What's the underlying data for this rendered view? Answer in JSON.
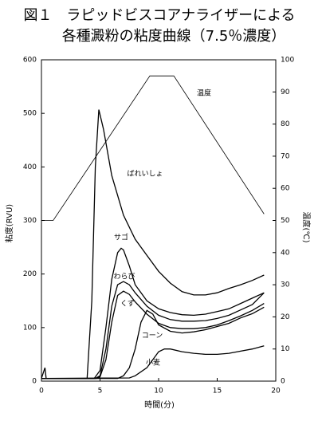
{
  "chart_data": {
    "type": "line",
    "title": [
      "図１　ラピッドビスコアナライザーによる",
      "各種澱粉の粘度曲線（7.5％濃度）"
    ],
    "x_label": "時間(分)",
    "y_label": "粘度(RVU)",
    "y2_label": "温度(℃)",
    "xlim": [
      0,
      20
    ],
    "xticks": [
      0,
      5,
      10,
      15,
      20
    ],
    "ylim": [
      0,
      600
    ],
    "yticks": [
      0,
      100,
      200,
      300,
      400,
      500,
      600
    ],
    "y2lim": [
      0,
      100
    ],
    "y2ticks": [
      0,
      10,
      20,
      30,
      40,
      50,
      60,
      70,
      80,
      90,
      100
    ],
    "series": [
      {
        "name": "ばれいしょ",
        "color": "#000000",
        "x": [
          0,
          0.3,
          0.4,
          3.9,
          4.3,
          4.6,
          4.9,
          5.3,
          6,
          7,
          8,
          9,
          10,
          11,
          12,
          13,
          14,
          15,
          16,
          17,
          18,
          19
        ],
        "values": [
          5,
          25,
          5,
          5,
          150,
          400,
          507,
          470,
          384,
          310,
          265,
          235,
          205,
          183,
          167,
          161,
          161,
          165,
          173,
          180,
          188,
          198
        ]
      },
      {
        "name": "サゴ",
        "color": "#000000",
        "x": [
          0,
          4.5,
          5,
          5.5,
          6,
          6.5,
          6.8,
          7,
          7.5,
          8,
          9,
          10,
          11,
          12,
          13,
          14,
          15,
          16,
          17,
          18,
          19
        ],
        "values": [
          5,
          5,
          20,
          100,
          190,
          240,
          248,
          245,
          215,
          180,
          150,
          135,
          128,
          124,
          123,
          125,
          130,
          135,
          145,
          155,
          165
        ]
      },
      {
        "name": "わらび",
        "color": "#000000",
        "x": [
          0,
          4.6,
          5,
          5.5,
          6,
          6.5,
          7,
          7.5,
          8,
          9,
          10,
          11,
          12,
          13,
          14,
          15,
          16,
          17,
          18,
          19
        ],
        "values": [
          5,
          5,
          10,
          60,
          140,
          180,
          186,
          180,
          165,
          140,
          123,
          115,
          112,
          112,
          113,
          117,
          123,
          133,
          143,
          165
        ]
      },
      {
        "name": "くず",
        "color": "#000000",
        "x": [
          0,
          4.7,
          5,
          5.5,
          6,
          6.5,
          7,
          7.5,
          8,
          9,
          10,
          11,
          12,
          13,
          14,
          15,
          16,
          17,
          18,
          19
        ],
        "values": [
          5,
          5,
          8,
          40,
          110,
          160,
          168,
          162,
          148,
          125,
          108,
          100,
          98,
          98,
          100,
          105,
          113,
          122,
          132,
          145
        ]
      },
      {
        "name": "コーン",
        "color": "#000000",
        "x": [
          0,
          6.5,
          7,
          7.5,
          8,
          8.5,
          9,
          9.5,
          10,
          11,
          12,
          13,
          14,
          15,
          16,
          17,
          18,
          19
        ],
        "values": [
          5,
          5,
          10,
          25,
          60,
          110,
          132,
          125,
          105,
          93,
          90,
          92,
          96,
          102,
          108,
          118,
          126,
          138
        ]
      },
      {
        "name": "小麦",
        "color": "#000000",
        "x": [
          0,
          7.5,
          8,
          9,
          9.5,
          10,
          10.5,
          11,
          12,
          13,
          14,
          15,
          16,
          17,
          18,
          19
        ],
        "values": [
          5,
          6,
          10,
          25,
          40,
          55,
          60,
          60,
          55,
          52,
          50,
          50,
          52,
          56,
          60,
          66
        ]
      },
      {
        "name": "温度",
        "color": "#000000",
        "axis": "y2",
        "x": [
          0,
          1,
          9.25,
          11.3,
          19
        ],
        "values": [
          50,
          50,
          95,
          95,
          52
        ]
      }
    ]
  }
}
